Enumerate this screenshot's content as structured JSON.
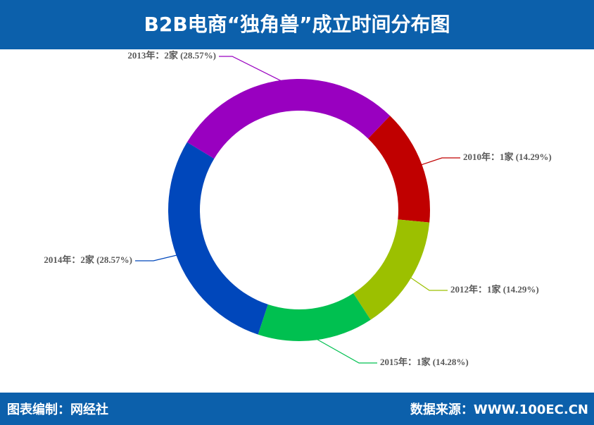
{
  "chart_data": {
    "type": "donut",
    "title": "B2B电商“独角兽”成立时间分布图",
    "labels": [
      "2010年：1家 (14.29%)",
      "2012年：1家 (14.29%)",
      "2015年：1家 (14.28%)",
      "2014年：2家 (28.57%)",
      "2013年：2家 (28.57%)"
    ],
    "values": [
      14.29,
      14.29,
      14.28,
      28.57,
      28.57
    ],
    "colors": [
      "#c00000",
      "#9cc000",
      "#00c050",
      "#0047bb",
      "#9900c0"
    ],
    "footer_left": "图表编制：网经社",
    "footer_right": "数据来源：WWW.100EC.CN"
  }
}
